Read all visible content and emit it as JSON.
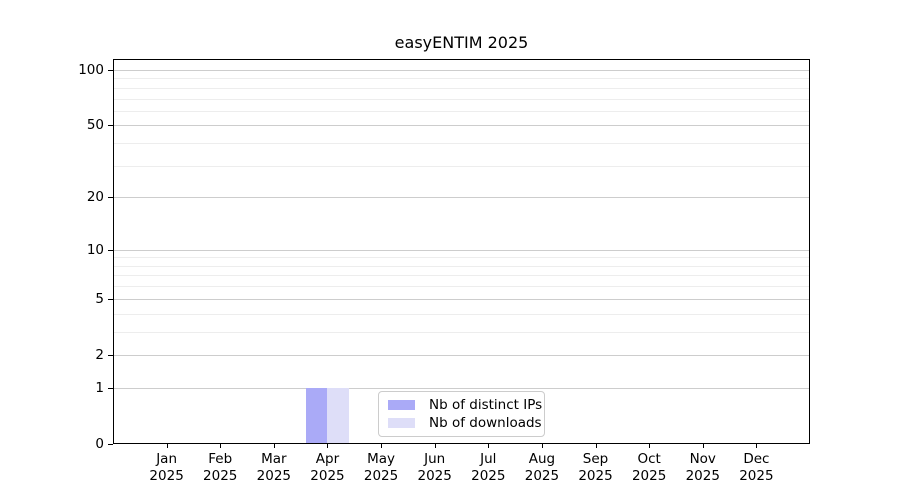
{
  "title": "easyENTIM 2025",
  "chart_data": {
    "type": "bar",
    "title": "easyENTIM 2025",
    "categories": [
      "Jan",
      "Feb",
      "Mar",
      "Apr",
      "May",
      "Jun",
      "Jul",
      "Aug",
      "Sep",
      "Oct",
      "Nov",
      "Dec"
    ],
    "category_year": "2025",
    "series": [
      {
        "name": "Nb of distinct IPs",
        "color": "#aaaaf7",
        "values": [
          0,
          0,
          0,
          1,
          0,
          0,
          0,
          0,
          0,
          0,
          0,
          0
        ]
      },
      {
        "name": "Nb of downloads",
        "color": "#dedef8",
        "values": [
          0,
          0,
          0,
          1,
          0,
          0,
          0,
          0,
          0,
          0,
          0,
          0
        ]
      }
    ],
    "xlabel": "",
    "ylabel": "",
    "yscale": "log1p",
    "ylim": [
      0,
      100
    ],
    "y_tick_values": [
      0,
      1,
      2,
      5,
      10,
      20,
      50,
      100
    ],
    "y_minor_gridlines": [
      3,
      4,
      6,
      7,
      8,
      9,
      30,
      40,
      60,
      70,
      80,
      90
    ],
    "grid": true,
    "legend": {
      "position": "lower-center",
      "entries": [
        "Nb of distinct IPs",
        "Nb of downloads"
      ]
    },
    "colors": {
      "major_grid": "#cdcdcd",
      "minor_grid": "#ededed",
      "axis": "#000000",
      "background": "#ffffff"
    }
  }
}
